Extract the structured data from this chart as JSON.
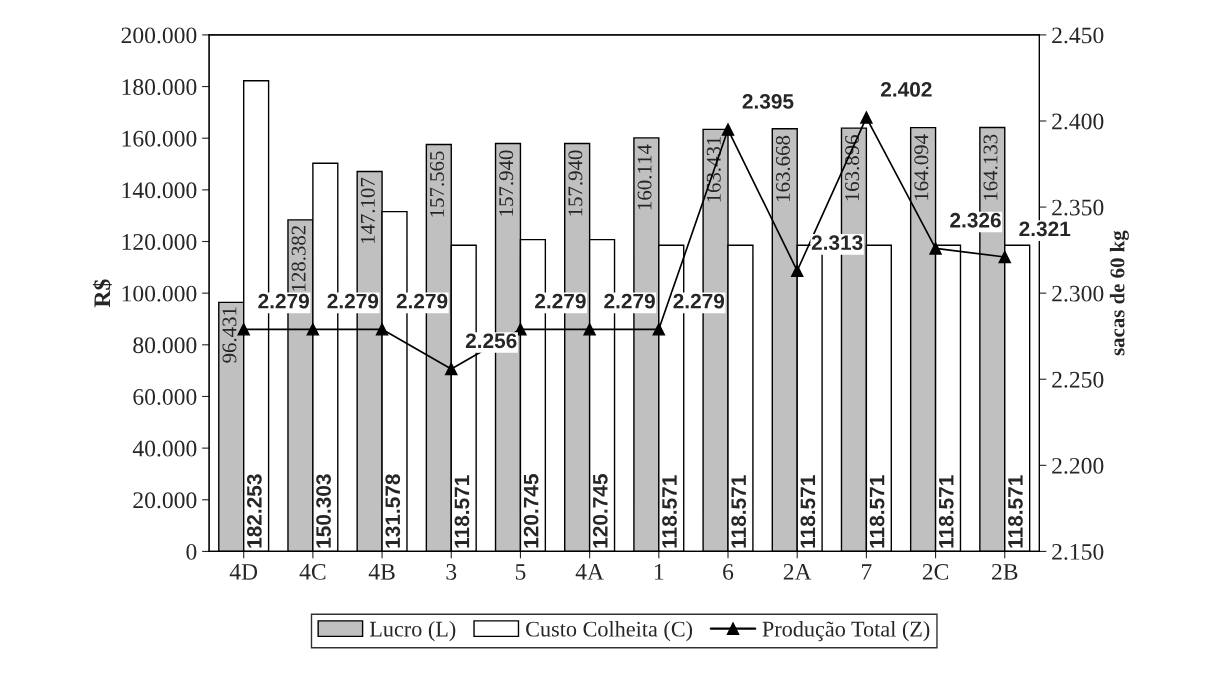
{
  "chart_data": {
    "type": "bar",
    "categories": [
      "4D",
      "4C",
      "4B",
      "3",
      "5",
      "4A",
      "1",
      "6",
      "2A",
      "7",
      "2C",
      "2B"
    ],
    "ylabel": "R$",
    "y2label": "sacas de 60 kg",
    "series": [
      {
        "name": "Lucro (L)",
        "color": "#c0c0c0",
        "values": [
          96431,
          128382,
          147107,
          157565,
          157940,
          157940,
          160114,
          163431,
          163668,
          163896,
          164094,
          164133
        ],
        "value_labels": [
          "96.431",
          "128.382",
          "147.107",
          "157.565",
          "157.940",
          "157.940",
          "160.114",
          "163.431",
          "163.668",
          "163.896",
          "164.094",
          "164.133"
        ]
      },
      {
        "name": "Custo Colheita (C)",
        "color": "#ffffff",
        "values": [
          182253,
          150303,
          131578,
          118571,
          120745,
          120745,
          118571,
          118571,
          118571,
          118571,
          118571,
          118571
        ],
        "value_labels": [
          "182.253",
          "150.303",
          "131.578",
          "118.571",
          "120.745",
          "120.745",
          "118.571",
          "118.571",
          "118.571",
          "118.571",
          "118.571",
          "118.571"
        ]
      },
      {
        "name": "Produção Total (Z)",
        "type": "line",
        "axis": "y2",
        "color": "#000000",
        "marker": "triangle",
        "values": [
          2279,
          2279,
          2279,
          2256,
          2279,
          2279,
          2279,
          2395,
          2313,
          2402,
          2326,
          2321
        ],
        "value_labels": [
          "2.279",
          "2.279",
          "2.279",
          "2.256",
          "2.279",
          "2.279",
          "2.279",
          "2.395",
          "2.313",
          "2.402",
          "2.326",
          "2.321"
        ]
      }
    ],
    "ylim": [
      0,
      200000
    ],
    "yticks": [
      {
        "value": 0,
        "label": "0"
      },
      {
        "value": 20000,
        "label": "20.000"
      },
      {
        "value": 40000,
        "label": "40.000"
      },
      {
        "value": 60000,
        "label": "60.000"
      },
      {
        "value": 80000,
        "label": "80.000"
      },
      {
        "value": 100000,
        "label": "100.000"
      },
      {
        "value": 120000,
        "label": "120.000"
      },
      {
        "value": 140000,
        "label": "140.000"
      },
      {
        "value": 160000,
        "label": "160.000"
      },
      {
        "value": 180000,
        "label": "180.000"
      },
      {
        "value": 200000,
        "label": "200.000"
      }
    ],
    "y2lim": [
      2150,
      2450
    ],
    "y2ticks": [
      {
        "value": 2150,
        "label": "2.150"
      },
      {
        "value": 2200,
        "label": "2.200"
      },
      {
        "value": 2250,
        "label": "2.250"
      },
      {
        "value": 2300,
        "label": "2.300"
      },
      {
        "value": 2350,
        "label": "2.350"
      },
      {
        "value": 2400,
        "label": "2.400"
      },
      {
        "value": 2450,
        "label": "2.450"
      }
    ],
    "legend": "bottom",
    "grid": false
  }
}
